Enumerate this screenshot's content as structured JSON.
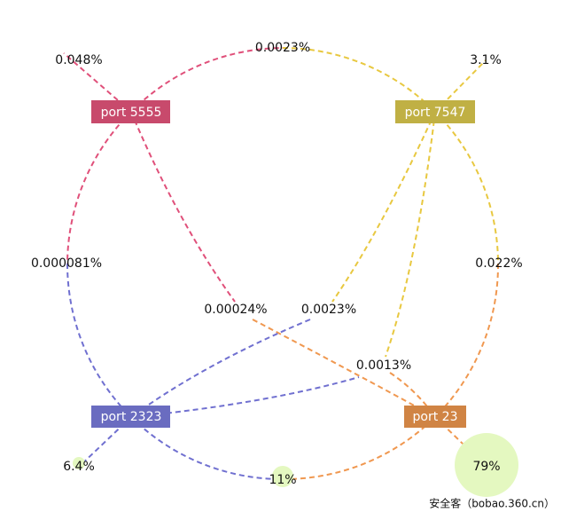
{
  "nodes": [
    {
      "label": "port 5555"
    },
    {
      "label": "port 7547"
    },
    {
      "label": "port 2323"
    },
    {
      "label": "port 23"
    }
  ],
  "labels": [
    "0.048%",
    "0.0023%",
    "3.1%",
    "0.000081%",
    "0.022%",
    "0.00024%",
    "0.0023%",
    "0.0013%",
    "6.4%",
    "11%",
    "79%"
  ],
  "watermark": "安全客（bobao.360.cn）"
}
